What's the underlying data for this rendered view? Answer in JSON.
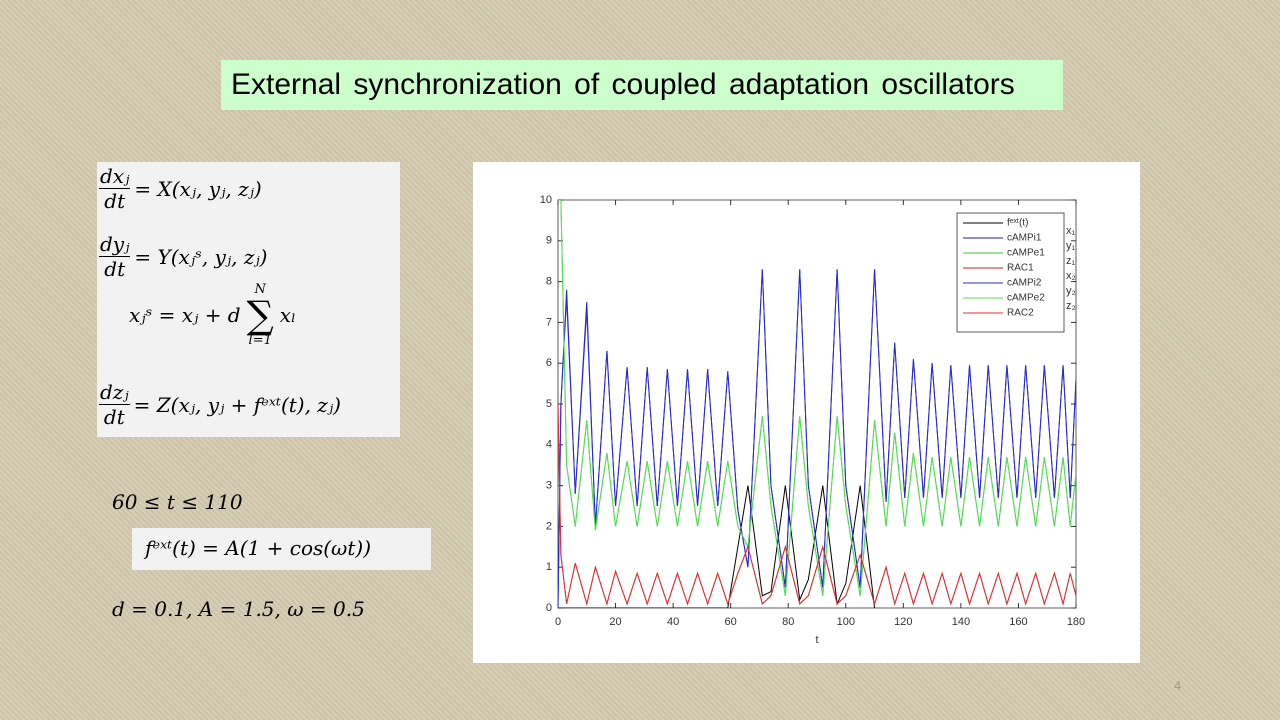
{
  "slide": {
    "title": "External synchronization of coupled adaptation oscillators",
    "page_number": "4"
  },
  "equations": [
    {
      "numerator": "dxⱼ",
      "denominator": "dt",
      "rhs": "= X(xⱼ, yⱼ, zⱼ)"
    },
    {
      "numerator": "dyⱼ",
      "denominator": "dt",
      "rhs": "= Y(xⱼˢ, yⱼ, zⱼ)"
    },
    {
      "lhs": "xⱼˢ = xⱼ + d",
      "sum_upper": "N",
      "sum_symbol": "∑",
      "sum_lower": "l=1",
      "rhs": "xₗ"
    },
    {
      "numerator": "dzⱼ",
      "denominator": "dt",
      "rhs": "= Z(xⱼ, yⱼ + fᵉˣᵗ(t), zⱼ)"
    }
  ],
  "conditions": {
    "time_range": "60 ≤ t ≤ 110",
    "forcing": "fᵉˣᵗ(t) = A(1 + cos(ωt))",
    "parameters": "d = 0.1, A = 1.5, ω = 0.5"
  },
  "chart_data": {
    "type": "line",
    "x_label": "t",
    "x": [
      0,
      1,
      3,
      6,
      10,
      13,
      17,
      20,
      24,
      27.5,
      31,
      34.5,
      38,
      41.5,
      45,
      48.5,
      52,
      55.5,
      59,
      62.5,
      66,
      71,
      74,
      79,
      84,
      87,
      92,
      97,
      100,
      105,
      110,
      114,
      117,
      120.5,
      123.5,
      127,
      130,
      133.5,
      136.5,
      140,
      143,
      146.5,
      149.5,
      153,
      156,
      159.5,
      162.5,
      166,
      169,
      172.5,
      175.5,
      178,
      180
    ],
    "series": [
      {
        "name": "fᵉˣᵗ(t)",
        "color": "#000000",
        "values": [
          0,
          0,
          0,
          0,
          0,
          0,
          0,
          0,
          0,
          0,
          0,
          0,
          0,
          0,
          0,
          0,
          0,
          0,
          0,
          1.5,
          3,
          0.3,
          0.4,
          3,
          0.2,
          0.7,
          3,
          0.1,
          0.6,
          3,
          0,
          null,
          null,
          null,
          null,
          null,
          null,
          null,
          null,
          null,
          null,
          null,
          null,
          null,
          null,
          null,
          null,
          null,
          null,
          null,
          null,
          null,
          null
        ]
      },
      {
        "name": "cAMPi1",
        "color": "#1f1fa8",
        "values": [
          0,
          5,
          7.8,
          2.8,
          7.5,
          2.0,
          6.3,
          2.5,
          5.9,
          2.5,
          5.9,
          2.5,
          5.85,
          2.5,
          5.85,
          2.5,
          5.85,
          2.5,
          5.8,
          2.4,
          1.0,
          8.3,
          3.0,
          0.5,
          8.3,
          3.0,
          0.5,
          8.3,
          3.0,
          0.5,
          8.3,
          2.6,
          6.5,
          2.7,
          6.1,
          2.7,
          6.0,
          2.7,
          5.95,
          2.7,
          5.95,
          2.7,
          5.95,
          2.7,
          5.95,
          2.7,
          5.95,
          2.7,
          5.95,
          2.7,
          5.95,
          2.7,
          5.6
        ]
      },
      {
        "name": "cAMPe1",
        "color": "#33cc33",
        "values": [
          10,
          10,
          3.5,
          2.0,
          4.6,
          1.9,
          3.8,
          2.0,
          3.6,
          2.0,
          3.6,
          2.0,
          3.6,
          2.0,
          3.6,
          2.0,
          3.6,
          2.0,
          3.6,
          2.0,
          1.5,
          4.7,
          2.5,
          0.3,
          4.7,
          2.5,
          0.3,
          4.7,
          2.5,
          0.3,
          4.6,
          2.0,
          4.3,
          2.0,
          3.8,
          2.0,
          3.7,
          2.0,
          3.7,
          2.0,
          3.7,
          2.0,
          3.7,
          2.0,
          3.7,
          2.0,
          3.7,
          2.0,
          3.7,
          2.0,
          3.7,
          2.0,
          3.3
        ]
      },
      {
        "name": "RAC1",
        "color": "#cc2222",
        "values": [
          5,
          1.3,
          0.1,
          1.1,
          0.1,
          1.0,
          0.1,
          0.9,
          0.1,
          0.85,
          0.1,
          0.85,
          0.1,
          0.85,
          0.1,
          0.85,
          0.1,
          0.85,
          0.1,
          0.85,
          1.5,
          0.1,
          0.3,
          1.5,
          0.1,
          0.3,
          1.5,
          0.1,
          0.3,
          1.3,
          0.1,
          1.0,
          0.1,
          0.85,
          0.1,
          0.85,
          0.1,
          0.85,
          0.1,
          0.85,
          0.1,
          0.85,
          0.1,
          0.85,
          0.1,
          0.85,
          0.1,
          0.85,
          0.1,
          0.85,
          0.1,
          0.85,
          0.3
        ]
      },
      {
        "name": "cAMPi2",
        "color": "#2b2bd0",
        "values": [
          0,
          5,
          7.6,
          2.8,
          7.3,
          2.0,
          6.3,
          2.5,
          5.9,
          2.5,
          5.9,
          2.5,
          5.85,
          2.5,
          5.85,
          2.5,
          5.85,
          2.5,
          5.8,
          2.4,
          1.0,
          8.3,
          3.0,
          0.5,
          8.3,
          3.0,
          0.5,
          8.3,
          3.0,
          0.5,
          8.3,
          2.6,
          6.5,
          2.7,
          6.1,
          2.7,
          6.0,
          2.7,
          5.95,
          2.7,
          5.95,
          2.7,
          5.95,
          2.7,
          5.95,
          2.7,
          5.95,
          2.7,
          5.95,
          2.7,
          5.95,
          2.7,
          5.6
        ]
      },
      {
        "name": "cAMPe2",
        "color": "#55dd55",
        "values": [
          10,
          10,
          3.5,
          2.0,
          4.6,
          1.9,
          3.8,
          2.0,
          3.6,
          2.0,
          3.6,
          2.0,
          3.6,
          2.0,
          3.6,
          2.0,
          3.6,
          2.0,
          3.6,
          2.0,
          1.5,
          4.7,
          2.5,
          0.3,
          4.7,
          2.5,
          0.3,
          4.7,
          2.5,
          0.3,
          4.6,
          2.0,
          4.3,
          2.0,
          3.8,
          2.0,
          3.7,
          2.0,
          3.7,
          2.0,
          3.7,
          2.0,
          3.7,
          2.0,
          3.7,
          2.0,
          3.7,
          2.0,
          3.7,
          2.0,
          3.7,
          2.0,
          3.3
        ]
      },
      {
        "name": "RAC2",
        "color": "#dd3333",
        "values": [
          4.8,
          1.3,
          0.1,
          1.1,
          0.1,
          1.0,
          0.1,
          0.9,
          0.1,
          0.85,
          0.1,
          0.85,
          0.1,
          0.85,
          0.1,
          0.85,
          0.1,
          0.85,
          0.1,
          0.85,
          1.5,
          0.1,
          0.3,
          1.5,
          0.1,
          0.3,
          1.5,
          0.1,
          0.3,
          1.3,
          0.1,
          1.0,
          0.1,
          0.85,
          0.1,
          0.85,
          0.1,
          0.85,
          0.1,
          0.85,
          0.1,
          0.85,
          0.1,
          0.85,
          0.1,
          0.85,
          0.1,
          0.85,
          0.1,
          0.85,
          0.1,
          0.85,
          0.3
        ]
      }
    ],
    "xlim": [
      0,
      180
    ],
    "ylim": [
      0,
      10
    ],
    "xticks": [
      0,
      20,
      40,
      60,
      80,
      100,
      120,
      140,
      160,
      180
    ],
    "yticks": [
      0,
      1,
      2,
      3,
      4,
      5,
      6,
      7,
      8,
      9,
      10
    ],
    "grid": false,
    "legend": "upper right",
    "legend_side_labels": [
      "x₁",
      "y₁",
      "z₁",
      "x₂",
      "y₂",
      "z₂"
    ]
  }
}
